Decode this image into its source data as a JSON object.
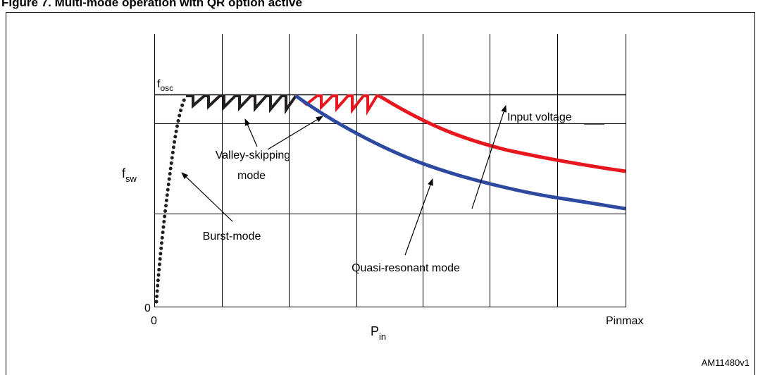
{
  "figure": {
    "caption": "Figure 7. Multi-mode operation with QR option active",
    "ref_id": "AM11480v1"
  },
  "axes": {
    "y_label_main": "f",
    "y_label_sub": "sw",
    "x_label_main": "P",
    "x_label_sub": "in",
    "y_origin": "0",
    "x_origin": "0",
    "x_max": "Pinmax",
    "top_level_main": "f",
    "top_level_sub": "osc"
  },
  "annotations": {
    "valley_skipping_line1": "Valley-skipping",
    "valley_skipping_line2": "mode",
    "burst_mode": "Burst-mode",
    "quasi_resonant_mode": "Quasi-resonant mode",
    "input_voltage": "Input voltage"
  },
  "colors": {
    "black_curve": "#231f20",
    "red_curve": "#e8171f",
    "blue_curve": "#2e4aa0",
    "grid": "#000000"
  }
}
